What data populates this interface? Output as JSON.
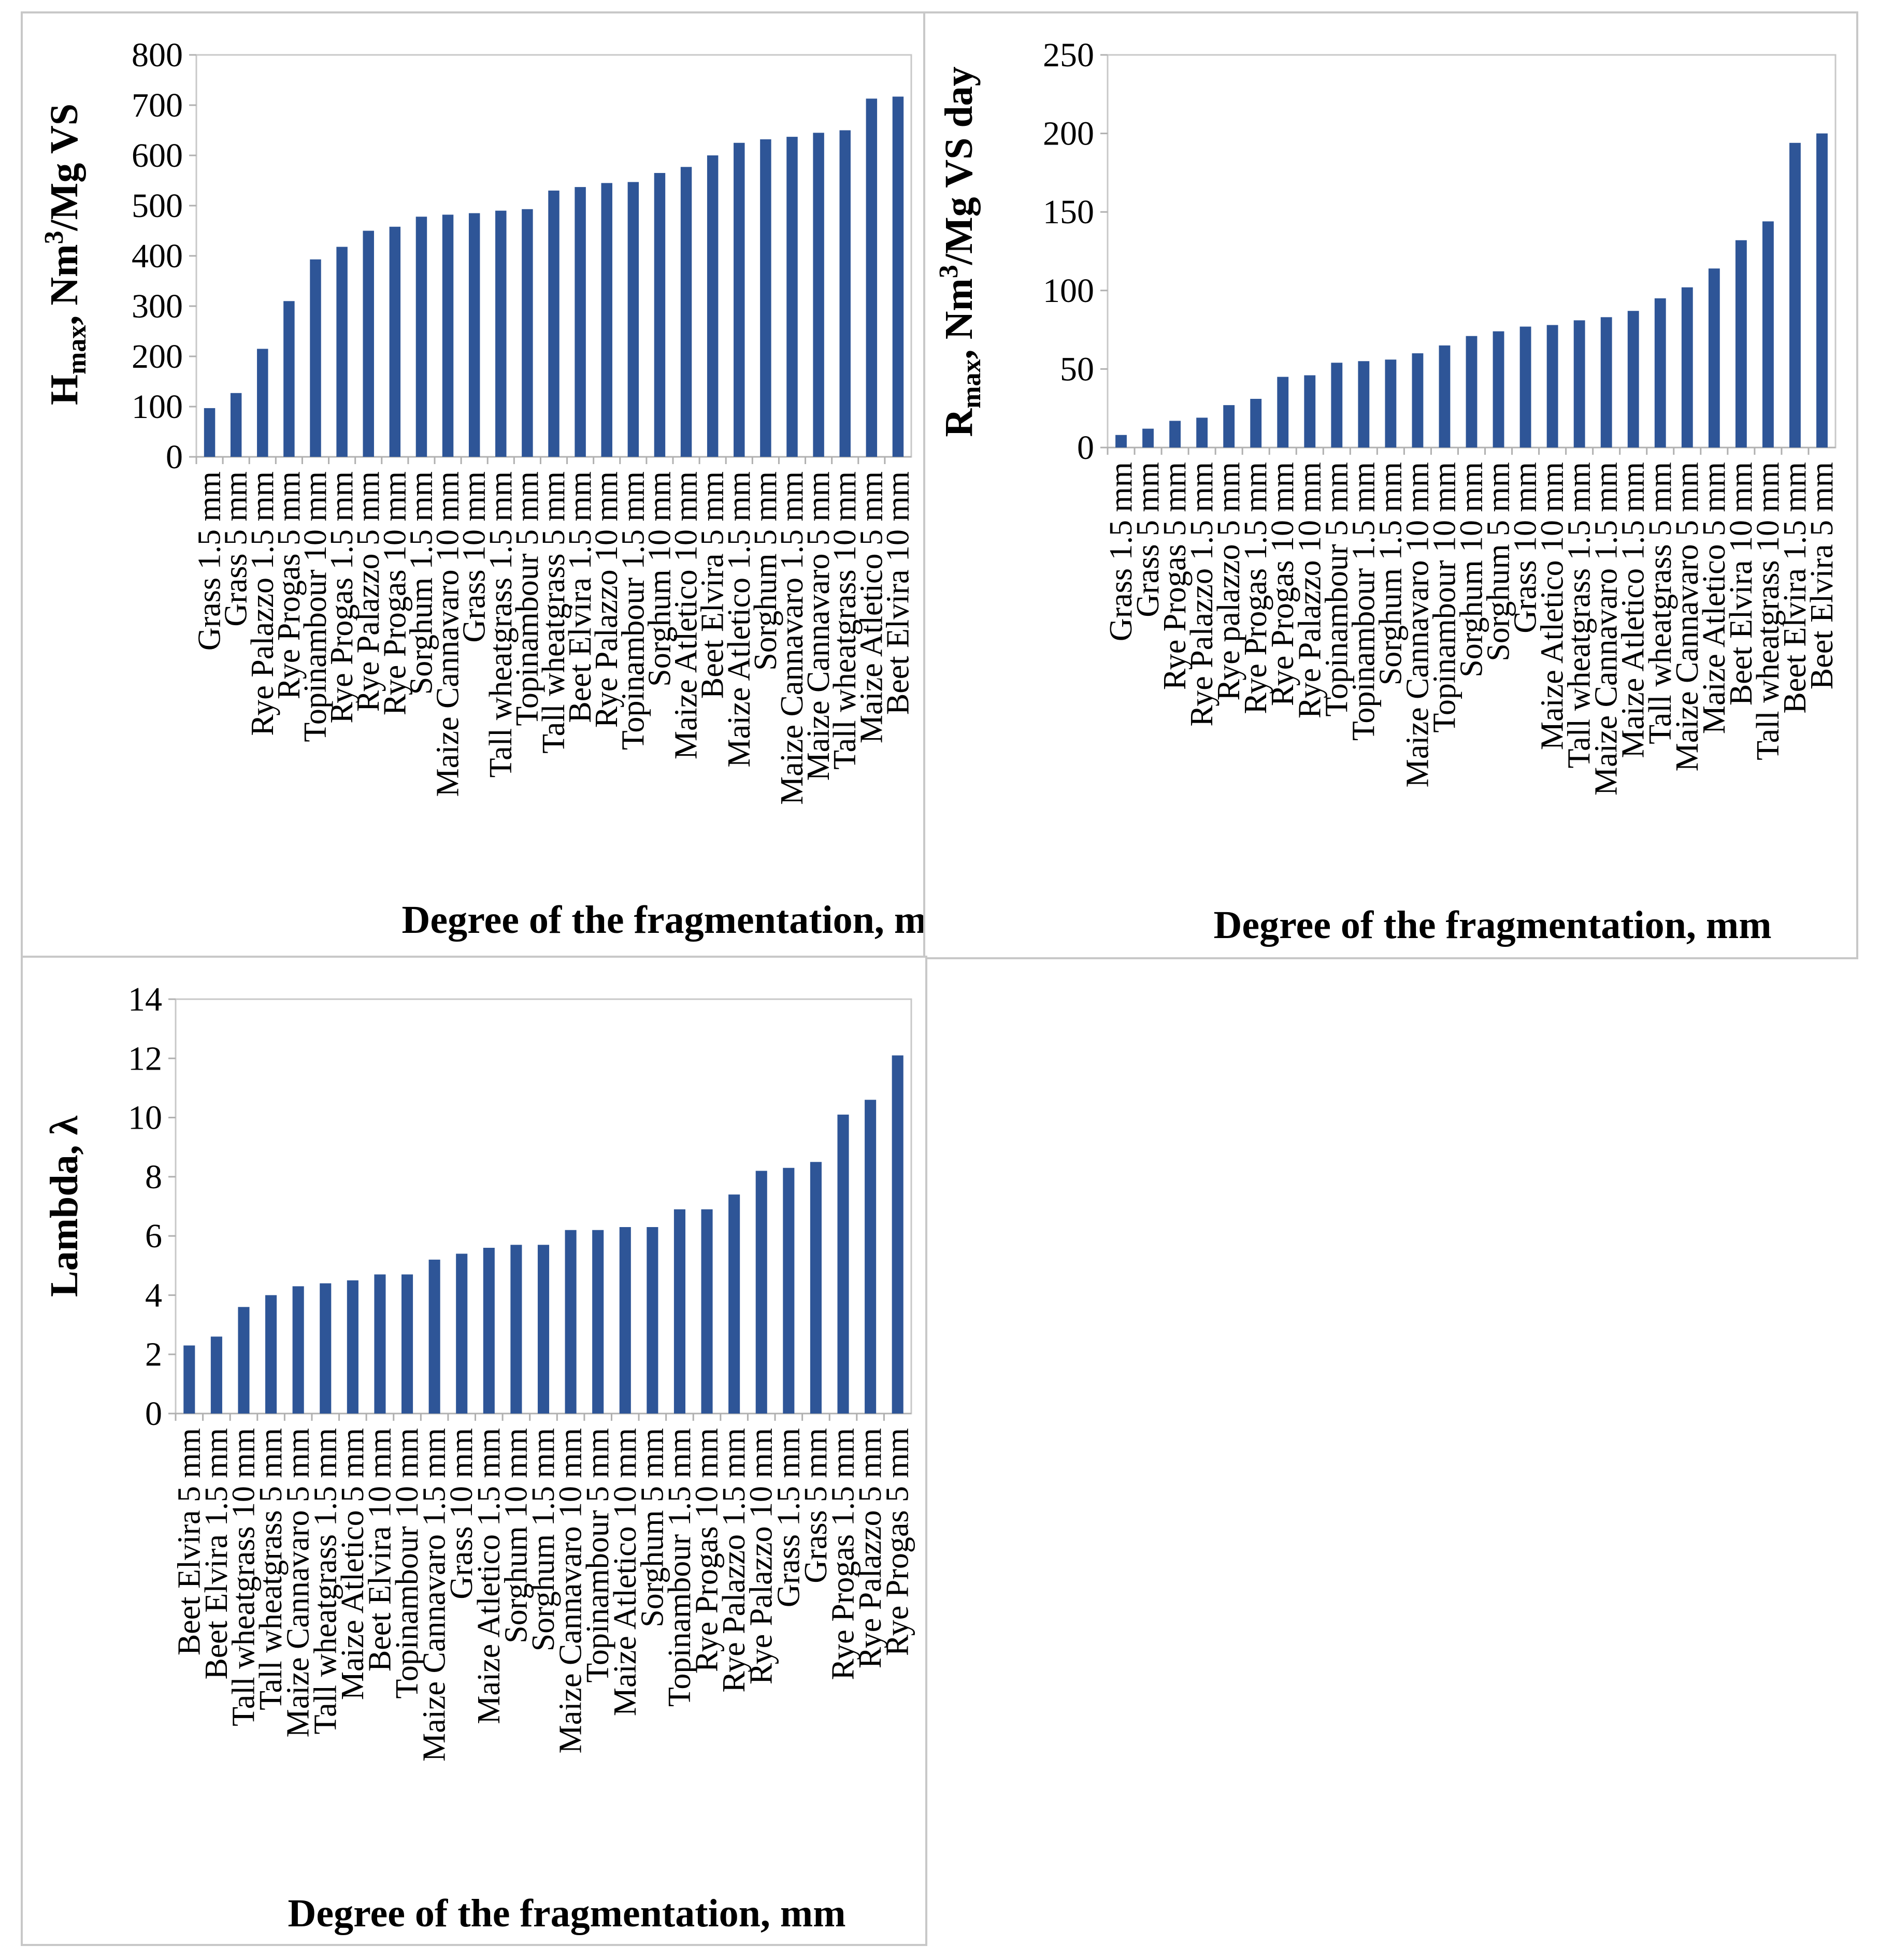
{
  "chart_data": [
    {
      "type": "bar",
      "title": "",
      "xlabel": "Degree of the fragmentation, mm",
      "ylabel": "Hmax, Nm3/Mg VS",
      "ylabel_parts": {
        "main": "H",
        "sub": "max",
        "rest": ", Nm",
        "sup": "3",
        "tail": "/Mg VS"
      },
      "ylim": [
        0,
        800
      ],
      "yticks": [
        0,
        100,
        200,
        300,
        400,
        500,
        600,
        700,
        800
      ],
      "bar_color": "#2e5597",
      "categories": [
        "Grass 1.5 mm",
        "Grass 5 mm",
        "Rye Palazzo 1.5 mm",
        "Rye Progas 5 mm",
        "Topinambour 10 mm",
        "Rye Progas 1.5 mm",
        "Rye Palazzo 5 mm",
        "Rye Progas 10 mm",
        "Sorghum 1.5 mm",
        "Maize Cannavaro 10 mm",
        "Grass 10 mm",
        "Tall wheatgrass 1.5 mm",
        "Topinambour 5 mm",
        "Tall wheatgrass 5 mm",
        "Beet Elvira 1.5 mm",
        "Rye Palazzo 10 mm",
        "Topinambour 1.5 mm",
        "Sorghum 10 mm",
        "Maize Atletico 10 mm",
        "Beet Elvira 5 mm",
        "Maize Atletico 1.5 mm",
        "Sorghum 5 mm",
        "Maize Cannavaro 1.5 mm",
        "Maize Cannavaro 5 mm",
        "Tall wheatgrass 10 mm",
        "Maize Atletico 5 mm",
        "Beet Elvira 10 mm"
      ],
      "values": [
        97,
        127,
        215,
        310,
        393,
        418,
        450,
        458,
        478,
        482,
        485,
        490,
        493,
        530,
        537,
        545,
        547,
        565,
        577,
        600,
        625,
        632,
        637,
        645,
        650,
        713,
        717
      ]
    },
    {
      "type": "bar",
      "title": "",
      "xlabel": "Degree of the fragmentation, mm",
      "ylabel": "Rmax, Nm3/Mg VS day",
      "ylabel_parts": {
        "main": "R",
        "sub": "max",
        "rest": ", Nm",
        "sup": "3",
        "tail": "/Mg VS day"
      },
      "ylim": [
        0,
        250
      ],
      "yticks": [
        0,
        50,
        100,
        150,
        200,
        250
      ],
      "bar_color": "#2e5597",
      "categories": [
        "Grass 1.5 mm",
        "Grass 5 mm",
        "Rye Progas 5 mm",
        "Rye Palazzo 1.5 mm",
        "Rye palazzo 5 mm",
        "Rye Progas 1.5 mm",
        "Rye Progas 10 mm",
        "Rye Palazzo 10 mm",
        "Topinambour 5 mm",
        "Topinambour 1.5 mm",
        "Sorghum 1.5 mm",
        "Maize Cannavaro 10 mm",
        "Topinambour 10 mm",
        "Sorghum 10 mm",
        "Sorghum 5 mm",
        "Grass 10 mm",
        "Maize Atletico 10 mm",
        "Tall wheatgrass 1.5 mm",
        "Maize Cannavaro 1.5 mm",
        "Maize Atletico 1.5 mm",
        "Tall wheatgrass 5 mm",
        "Maize Cannavaro 5 mm",
        "Maize Atletico 5 mm",
        "Beet Elvira 10 mm",
        "Tall wheatgrass 10 mm",
        "Beet Elvira 1.5 mm",
        "Beet Elvira 5 mm"
      ],
      "values": [
        8,
        12,
        17,
        19,
        27,
        31,
        45,
        46,
        54,
        55,
        56,
        60,
        65,
        71,
        74,
        77,
        78,
        81,
        83,
        87,
        95,
        102,
        114,
        132,
        144,
        194,
        200
      ]
    },
    {
      "type": "bar",
      "title": "",
      "xlabel": "Degree of the fragmentation, mm",
      "ylabel": "Lambda, λ",
      "ylabel_parts": {
        "main": "Lambda, λ",
        "sub": "",
        "rest": "",
        "sup": "",
        "tail": ""
      },
      "ylim": [
        0,
        14
      ],
      "yticks": [
        0,
        2,
        4,
        6,
        8,
        10,
        12,
        14
      ],
      "bar_color": "#2e5597",
      "categories": [
        "Beet Elvira 5 mm",
        "Beet Elvira 1.5 mm",
        "Tall wheatgrass 10 mm",
        "Tall wheatgrass 5 mm",
        "Maize Cannavaro 5 mm",
        "Tall wheatgrass 1.5 mm",
        "Maize Atletico 5 mm",
        "Beet Elvira 10 mm",
        "Topinambour 10 mm",
        "Maize Cannavaro 1.5 mm",
        "Grass 10 mm",
        "Maize Atletico 1.5 mm",
        "Sorghum 10 mm",
        "Sorghum 1.5 mm",
        "Maize Cannavaro 10 mm",
        "Topinambour 5 mm",
        "Maize Atletico 10 mm",
        "Sorghum 5 mm",
        "Topinambour 1.5 mm",
        "Rye Progas 10 mm",
        "Rye Palazzo 1.5 mm",
        "Rye Palazzo 10 mm",
        "Grass 1.5 mm",
        "Grass 5 mm",
        "Rye Progas 1.5 mm",
        "Rye Palazzo 5 mm",
        "Rye Progas 5 mm"
      ],
      "values": [
        2.3,
        2.6,
        3.6,
        4.0,
        4.3,
        4.4,
        4.5,
        4.7,
        4.7,
        5.2,
        5.4,
        5.6,
        5.7,
        5.7,
        6.2,
        6.2,
        6.3,
        6.3,
        6.9,
        6.9,
        7.4,
        8.2,
        8.3,
        8.5,
        10.1,
        10.6,
        12.1
      ]
    }
  ]
}
